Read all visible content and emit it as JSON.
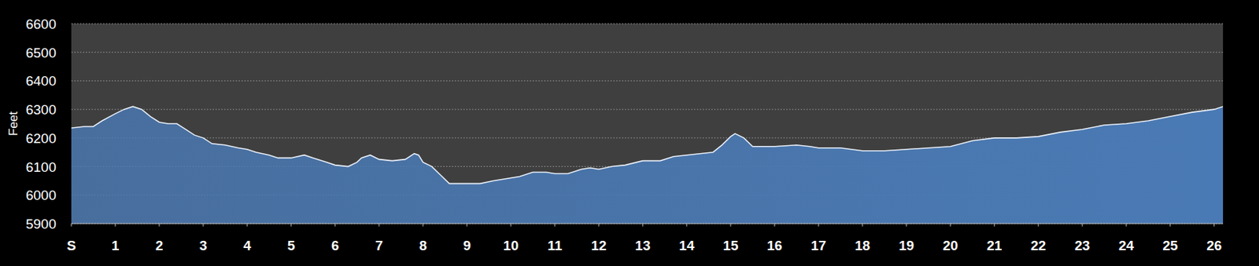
{
  "chart_data": {
    "type": "area",
    "ylabel": "Feet",
    "color": "#4a7ab5",
    "grid": true,
    "xlim": [
      0,
      26.2
    ],
    "ylim": [
      5900,
      6600
    ],
    "xticks": [
      {
        "value": 0,
        "label": "S"
      },
      1,
      2,
      3,
      4,
      5,
      6,
      7,
      8,
      9,
      10,
      11,
      12,
      13,
      14,
      15,
      16,
      17,
      18,
      19,
      20,
      21,
      22,
      23,
      24,
      25,
      26
    ],
    "yticks": [
      5900,
      6000,
      6100,
      6200,
      6300,
      6400,
      6500,
      6600
    ],
    "x": [
      0,
      0.3,
      0.5,
      0.7,
      1.0,
      1.2,
      1.4,
      1.6,
      1.8,
      2.0,
      2.2,
      2.4,
      2.6,
      2.8,
      3.0,
      3.2,
      3.5,
      3.8,
      4.0,
      4.2,
      4.5,
      4.7,
      5.0,
      5.3,
      5.5,
      5.8,
      6.0,
      6.3,
      6.5,
      6.6,
      6.8,
      7.0,
      7.3,
      7.6,
      7.8,
      7.9,
      8.0,
      8.2,
      8.4,
      8.6,
      8.8,
      9.0,
      9.3,
      9.6,
      10.0,
      10.2,
      10.5,
      10.8,
      11.0,
      11.3,
      11.6,
      11.8,
      12.0,
      12.3,
      12.6,
      13.0,
      13.4,
      13.7,
      14.0,
      14.3,
      14.6,
      14.8,
      15.0,
      15.1,
      15.3,
      15.5,
      16.0,
      16.5,
      16.8,
      17.0,
      17.5,
      18.0,
      18.5,
      19.0,
      19.5,
      20.0,
      20.5,
      21.0,
      21.5,
      22.0,
      22.5,
      23.0,
      23.5,
      24.0,
      24.5,
      25.0,
      25.5,
      26.0,
      26.2
    ],
    "values": [
      6235,
      6240,
      6240,
      6260,
      6285,
      6300,
      6310,
      6300,
      6275,
      6255,
      6250,
      6250,
      6230,
      6210,
      6200,
      6180,
      6175,
      6165,
      6160,
      6150,
      6140,
      6130,
      6130,
      6140,
      6130,
      6115,
      6105,
      6100,
      6115,
      6130,
      6140,
      6125,
      6120,
      6125,
      6145,
      6140,
      6115,
      6100,
      6070,
      6040,
      6040,
      6040,
      6040,
      6050,
      6060,
      6065,
      6080,
      6080,
      6075,
      6075,
      6090,
      6095,
      6090,
      6100,
      6105,
      6120,
      6120,
      6135,
      6140,
      6145,
      6150,
      6175,
      6205,
      6215,
      6200,
      6170,
      6170,
      6175,
      6170,
      6165,
      6165,
      6155,
      6155,
      6160,
      6165,
      6170,
      6190,
      6200,
      6200,
      6205,
      6220,
      6230,
      6245,
      6250,
      6260,
      6275,
      6290,
      6300,
      6310
    ]
  }
}
